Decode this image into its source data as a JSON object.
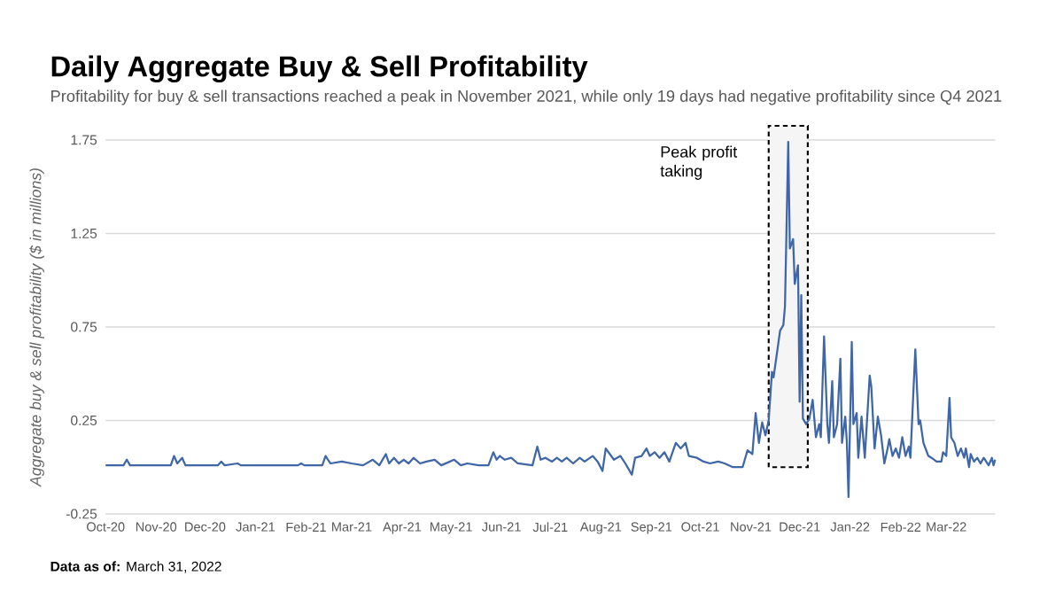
{
  "chart_data": {
    "type": "line",
    "title": "Daily Aggregate Buy & Sell Profitability",
    "subtitle": "Profitability for buy & sell transactions reached a peak in November 2021, while only 19 days had negative profitability since Q4 2021",
    "ylabel": "Aggregate buy & sell profitability ($ in millions)",
    "annotations": [
      "**Data as of:** March 31, 2022"
    ],
    "x": [
      "2020-10-01",
      "2020-10-12",
      "2020-10-14",
      "2020-10-16",
      "2020-11-10",
      "2020-11-12",
      "2020-11-14",
      "2020-11-17",
      "2020-11-19",
      "2020-12-09",
      "2020-12-11",
      "2020-12-13",
      "2020-12-21",
      "2020-12-23",
      "2021-01-27",
      "2021-01-29",
      "2021-01-31",
      "2021-02-11",
      "2021-02-13",
      "2021-02-16",
      "2021-02-23",
      "2021-03-01",
      "2021-03-08",
      "2021-03-14",
      "2021-03-18",
      "2021-03-22",
      "2021-03-24",
      "2021-03-27",
      "2021-03-30",
      "2021-04-02",
      "2021-04-05",
      "2021-04-08",
      "2021-04-12",
      "2021-04-16",
      "2021-04-21",
      "2021-04-25",
      "2021-05-03",
      "2021-05-07",
      "2021-05-11",
      "2021-05-18",
      "2021-05-24",
      "2021-05-27",
      "2021-05-29",
      "2021-05-31",
      "2021-06-03",
      "2021-06-07",
      "2021-06-11",
      "2021-06-20",
      "2021-06-23",
      "2021-06-25",
      "2021-06-28",
      "2021-07-02",
      "2021-07-05",
      "2021-07-08",
      "2021-07-11",
      "2021-07-15",
      "2021-07-19",
      "2021-07-22",
      "2021-07-27",
      "2021-07-30",
      "2021-08-02",
      "2021-08-04",
      "2021-08-09",
      "2021-08-13",
      "2021-08-16",
      "2021-08-20",
      "2021-08-22",
      "2021-08-26",
      "2021-08-29",
      "2021-08-31",
      "2021-09-03",
      "2021-09-06",
      "2021-09-09",
      "2021-09-12",
      "2021-09-16",
      "2021-09-19",
      "2021-09-22",
      "2021-09-24",
      "2021-09-29",
      "2021-10-03",
      "2021-10-07",
      "2021-10-12",
      "2021-10-16",
      "2021-10-21",
      "2021-10-27",
      "2021-10-30",
      "2021-11-02",
      "2021-11-04",
      "2021-11-06",
      "2021-11-08",
      "2021-11-10",
      "2021-11-12",
      "2021-11-14",
      "2021-11-15",
      "2021-11-19",
      "2021-11-21",
      "2021-11-22",
      "2021-11-24",
      "2021-11-25",
      "2021-11-27",
      "2021-11-28",
      "2021-11-30",
      "2021-12-01",
      "2021-12-02",
      "2021-12-03",
      "2021-12-05",
      "2021-12-07",
      "2021-12-09",
      "2021-12-11",
      "2021-12-13",
      "2021-12-14",
      "2021-12-16",
      "2021-12-18",
      "2021-12-19",
      "2021-12-21",
      "2021-12-22",
      "2021-12-24",
      "2021-12-26",
      "2021-12-27",
      "2021-12-29",
      "2021-12-30",
      "2021-12-31",
      "2022-01-02",
      "2022-01-03",
      "2022-01-05",
      "2022-01-06",
      "2022-01-08",
      "2022-01-10",
      "2022-01-13",
      "2022-01-14",
      "2022-01-16",
      "2022-01-18",
      "2022-01-20",
      "2022-01-22",
      "2022-01-24",
      "2022-01-25",
      "2022-01-27",
      "2022-01-29",
      "2022-01-31",
      "2022-02-02",
      "2022-02-04",
      "2022-02-06",
      "2022-02-07",
      "2022-02-10",
      "2022-02-12",
      "2022-02-13",
      "2022-02-15",
      "2022-02-18",
      "2022-02-20",
      "2022-02-23",
      "2022-02-26",
      "2022-02-27",
      "2022-03-01",
      "2022-03-03",
      "2022-03-04",
      "2022-03-06",
      "2022-03-08",
      "2022-03-10",
      "2022-03-12",
      "2022-03-13",
      "2022-03-15",
      "2022-03-16",
      "2022-03-18",
      "2022-03-20",
      "2022-03-22",
      "2022-03-24",
      "2022-03-27",
      "2022-03-29",
      "2022-03-30",
      "2022-03-31"
    ],
    "values": [
      0.01,
      0.01,
      0.04,
      0.01,
      0.01,
      0.06,
      0.02,
      0.05,
      0.01,
      0.01,
      0.03,
      0.01,
      0.02,
      0.01,
      0.01,
      0.02,
      0.01,
      0.01,
      0.06,
      0.02,
      0.03,
      0.02,
      0.01,
      0.04,
      0.01,
      0.07,
      0.02,
      0.05,
      0.02,
      0.04,
      0.02,
      0.05,
      0.02,
      0.03,
      0.04,
      0.01,
      0.04,
      0.01,
      0.02,
      0.01,
      0.01,
      0.08,
      0.04,
      0.06,
      0.04,
      0.05,
      0.02,
      0.01,
      0.11,
      0.04,
      0.05,
      0.03,
      0.05,
      0.03,
      0.05,
      0.02,
      0.05,
      0.03,
      0.06,
      0.03,
      -0.02,
      0.1,
      0.04,
      0.06,
      0.02,
      -0.04,
      0.05,
      0.06,
      0.1,
      0.06,
      0.08,
      0.05,
      0.08,
      0.03,
      0.13,
      0.1,
      0.13,
      0.06,
      0.05,
      0.03,
      0.02,
      0.03,
      0.02,
      0,
      0,
      0.09,
      0.07,
      0.29,
      0.13,
      0.24,
      0.17,
      0.25,
      0.51,
      0.48,
      0.73,
      0.76,
      0.86,
      1.74,
      1.17,
      1.22,
      0.98,
      1.08,
      0.35,
      0.92,
      0.26,
      0.23,
      0.26,
      0.36,
      0.16,
      0.23,
      0.16,
      0.7,
      0.23,
      0.13,
      0.46,
      0.16,
      0.23,
      0.58,
      0.13,
      0.27,
      0.13,
      -0.16,
      0.67,
      0.23,
      0.29,
      0.05,
      0.27,
      0.05,
      0.49,
      0.43,
      0.1,
      0.27,
      0.17,
      0.02,
      0.1,
      0.15,
      0.06,
      0.1,
      0.05,
      0.16,
      0.06,
      0.11,
      0.05,
      0.63,
      0.23,
      0.25,
      0.13,
      0.06,
      0.05,
      0.03,
      0.03,
      0.08,
      0.06,
      0.37,
      0.16,
      0.13,
      0.06,
      0.1,
      0.05,
      0.1,
      0,
      0.07,
      0.03,
      0.05,
      0.02,
      0.05,
      0.01,
      0.05,
      0.01,
      0.04
    ],
    "color": "#3f66a6",
    "xlim": [
      "2020-10-01",
      "2022-03-31"
    ],
    "xticks": [
      {
        "value": "2020-10-01",
        "label": "Oct-20"
      },
      {
        "value": "2020-11-01",
        "label": "Nov-20"
      },
      {
        "value": "2020-12-01",
        "label": "Dec-20"
      },
      {
        "value": "2021-01-01",
        "label": "Jan-21"
      },
      {
        "value": "2021-02-01",
        "label": "Feb-21"
      },
      {
        "value": "2021-03-01",
        "label": "Mar-21"
      },
      {
        "value": "2021-04-01",
        "label": "Apr-21"
      },
      {
        "value": "2021-05-01",
        "label": "May-21"
      },
      {
        "value": "2021-06-01",
        "label": "Jun-21"
      },
      {
        "value": "2021-07-01",
        "label": "Jul-21"
      },
      {
        "value": "2021-08-01",
        "label": "Aug-21"
      },
      {
        "value": "2021-09-01",
        "label": "Sep-21"
      },
      {
        "value": "2021-10-01",
        "label": "Oct-21"
      },
      {
        "value": "2021-11-01",
        "label": "Nov-21"
      },
      {
        "value": "2021-12-01",
        "label": "Dec-21"
      },
      {
        "value": "2022-01-01",
        "label": "Jan-22"
      },
      {
        "value": "2022-02-01",
        "label": "Feb-22"
      },
      {
        "value": "2022-03-01",
        "label": "Mar-22"
      }
    ],
    "ylim": [
      -0.25,
      1.75
    ],
    "yticks": [
      -0.25,
      0.25,
      0.75,
      1.25,
      1.75
    ],
    "grid": "y",
    "bands": [
      {
        "axis": "x",
        "from": "2021-11-12",
        "to": "2021-12-06",
        "label": "Peak profit taking",
        "color": "#000000"
      }
    ]
  }
}
